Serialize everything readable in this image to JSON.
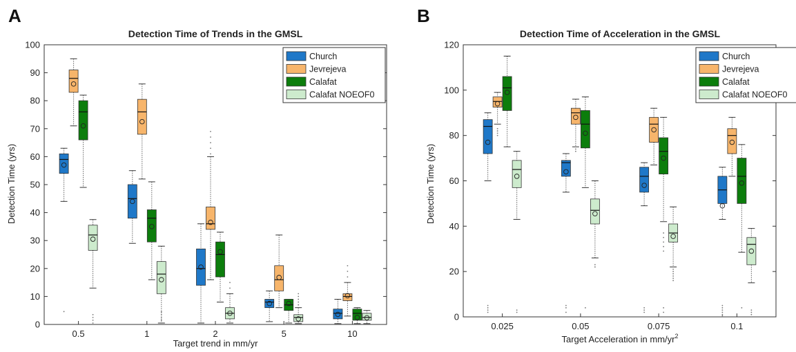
{
  "chart_data": [
    {
      "type": "box",
      "panel_label": "A",
      "title": "Detection Time of Trends in the GMSL",
      "xlabel": "Target trend in mm/yr",
      "ylabel": "Detection Time  (yrs)",
      "ylim": [
        0,
        100
      ],
      "yticks": [
        0,
        10,
        20,
        30,
        40,
        50,
        60,
        70,
        80,
        90,
        100
      ],
      "categories": [
        "0.5",
        "1",
        "2",
        "5",
        "10"
      ],
      "legend_position": "top-right",
      "series": [
        {
          "name": "Church",
          "color": "#1f78c8",
          "boxes": [
            {
              "whislo": 44,
              "q1": 54,
              "med": 59,
              "q3": 61,
              "whishi": 63,
              "mean": 57,
              "fliers": [
                4.6
              ]
            },
            {
              "whislo": 29,
              "q1": 38,
              "med": 45,
              "q3": 50,
              "whishi": 55,
              "mean": 44,
              "fliers": []
            },
            {
              "whislo": 0.5,
              "q1": 14,
              "med": 20,
              "q3": 27,
              "whishi": 36,
              "mean": 20.5,
              "fliers": []
            },
            {
              "whislo": 1,
              "q1": 6,
              "med": 8,
              "q3": 9,
              "whishi": 12,
              "mean": 7.5,
              "fliers": []
            },
            {
              "whislo": 0.3,
              "q1": 2,
              "med": 4,
              "q3": 5.5,
              "whishi": 9,
              "mean": 3.6,
              "fliers": []
            }
          ]
        },
        {
          "name": "Jevrejeva",
          "color": "#f7b56b",
          "boxes": [
            {
              "whislo": 71,
              "q1": 83,
              "med": 88,
              "q3": 91,
              "whishi": 95,
              "mean": 86,
              "fliers": []
            },
            {
              "whislo": 52,
              "q1": 68,
              "med": 76,
              "q3": 80.5,
              "whishi": 86,
              "mean": 72.5,
              "fliers": []
            },
            {
              "whislo": 16,
              "q1": 34,
              "med": 36,
              "q3": 42,
              "whishi": 60,
              "mean": 36.5,
              "fliers": [
                61,
                63,
                65,
                67,
                69
              ]
            },
            {
              "whislo": 6,
              "q1": 12,
              "med": 16,
              "q3": 21,
              "whishi": 32,
              "mean": 16.8,
              "fliers": []
            },
            {
              "whislo": 3,
              "q1": 8.5,
              "med": 10,
              "q3": 11,
              "whishi": 15,
              "mean": 10.3,
              "fliers": [
                17,
                19,
                21
              ]
            }
          ]
        },
        {
          "name": "Calafat",
          "color": "#0c7d0c",
          "boxes": [
            {
              "whislo": 49,
              "q1": 66,
              "med": 76,
              "q3": 80,
              "whishi": 82,
              "mean": 71,
              "fliers": []
            },
            {
              "whislo": 16,
              "q1": 29.5,
              "med": 38,
              "q3": 41,
              "whishi": 51,
              "mean": 35,
              "fliers": []
            },
            {
              "whislo": 8,
              "q1": 17,
              "med": 25,
              "q3": 29.5,
              "whishi": 33,
              "mean": 26,
              "fliers": []
            },
            {
              "whislo": 0.5,
              "q1": 5,
              "med": 7,
              "q3": 9,
              "whishi": 9,
              "mean": 7.5,
              "fliers": []
            },
            {
              "whislo": 0.3,
              "q1": 1.5,
              "med": 4,
              "q3": 5.5,
              "whishi": 6,
              "mean": 2.5,
              "fliers": []
            }
          ]
        },
        {
          "name": "Calafat NOEOF0",
          "color": "#cdebcd",
          "boxes": [
            {
              "whislo": 13,
              "q1": 26.5,
              "med": 32,
              "q3": 35.5,
              "whishi": 37.5,
              "mean": 30.5,
              "fliers": [
                0.5,
                1.5,
                2.5,
                3.5
              ]
            },
            {
              "whislo": 0.5,
              "q1": 11,
              "med": 18,
              "q3": 22.5,
              "whishi": 28,
              "mean": 16,
              "fliers": [
                1.5,
                2.5,
                3.5,
                4.5
              ]
            },
            {
              "whislo": 0.5,
              "q1": 2,
              "med": 4,
              "q3": 6,
              "whishi": 11,
              "mean": 4,
              "fliers": [
                13,
                15
              ]
            },
            {
              "whislo": 0.3,
              "q1": 1,
              "med": 2.5,
              "q3": 3.5,
              "whishi": 6,
              "mean": 2,
              "fliers": [
                7,
                8,
                9,
                10,
                11
              ]
            },
            {
              "whislo": 0.3,
              "q1": 1.5,
              "med": 2.5,
              "q3": 4,
              "whishi": 5,
              "mean": 2.4,
              "fliers": []
            }
          ]
        }
      ]
    },
    {
      "type": "box",
      "panel_label": "B",
      "title": "Detection Time of Acceleration in the GMSL",
      "xlabel": "Target Acceleration in mm/yr",
      "xlabel_superscript": "2",
      "ylabel": "Detection Time  (yrs)",
      "ylim": [
        0,
        120
      ],
      "yticks": [
        0,
        20,
        40,
        60,
        80,
        100,
        120
      ],
      "categories": [
        "0.025",
        "0.05",
        "0.075",
        "0.1"
      ],
      "legend_position": "top-right",
      "series": [
        {
          "name": "Church",
          "color": "#1f78c8",
          "boxes": [
            {
              "whislo": 60,
              "q1": 72,
              "med": 84,
              "q3": 87,
              "whishi": 90,
              "mean": 77,
              "fliers": [
                2,
                3,
                4,
                5
              ]
            },
            {
              "whislo": 55,
              "q1": 62,
              "med": 68,
              "q3": 69,
              "whishi": 72,
              "mean": 64,
              "fliers": [
                2,
                4,
                5
              ]
            },
            {
              "whislo": 49,
              "q1": 55,
              "med": 62,
              "q3": 66,
              "whishi": 68,
              "mean": 58,
              "fliers": [
                2,
                3,
                4
              ]
            },
            {
              "whislo": 43,
              "q1": 50,
              "med": 56,
              "q3": 62,
              "whishi": 66,
              "mean": 49,
              "fliers": [
                0.5,
                1,
                2,
                3,
                4,
                5
              ]
            }
          ]
        },
        {
          "name": "Jevrejeva",
          "color": "#f7b56b",
          "boxes": [
            {
              "whislo": 85,
              "q1": 92.5,
              "med": 95,
              "q3": 97,
              "whishi": 99,
              "mean": 94,
              "fliers": [
                80,
                81,
                82,
                83
              ]
            },
            {
              "whislo": 75,
              "q1": 85,
              "med": 90,
              "q3": 92,
              "whishi": 96,
              "mean": 88,
              "fliers": [
                73,
                74
              ]
            },
            {
              "whislo": 67,
              "q1": 77,
              "med": 85,
              "q3": 88,
              "whishi": 92,
              "mean": 82.5,
              "fliers": []
            },
            {
              "whislo": 62,
              "q1": 72,
              "med": 80,
              "q3": 83,
              "whishi": 88,
              "mean": 77,
              "fliers": []
            }
          ]
        },
        {
          "name": "Calafat",
          "color": "#0c7d0c",
          "boxes": [
            {
              "whislo": 75,
              "q1": 91,
              "med": 101,
              "q3": 106,
              "whishi": 115,
              "mean": 99,
              "fliers": []
            },
            {
              "whislo": 57,
              "q1": 74.5,
              "med": 85,
              "q3": 91,
              "whishi": 97,
              "mean": 81,
              "fliers": [
                4
              ]
            },
            {
              "whislo": 42,
              "q1": 63,
              "med": 73,
              "q3": 79,
              "whishi": 88,
              "mean": 70,
              "fliers": [
                2,
                4,
                29,
                31,
                33,
                35,
                37
              ]
            },
            {
              "whislo": 28.5,
              "q1": 50,
              "med": 62,
              "q3": 70,
              "whishi": 76,
              "mean": 59,
              "fliers": [
                4
              ]
            }
          ]
        },
        {
          "name": "Calafat NOEOF0",
          "color": "#cdebcd",
          "boxes": [
            {
              "whislo": 43,
              "q1": 57,
              "med": 65,
              "q3": 69,
              "whishi": 73,
              "mean": 62,
              "fliers": [
                2,
                3
              ]
            },
            {
              "whislo": 26,
              "q1": 41,
              "med": 47,
              "q3": 52,
              "whishi": 60,
              "mean": 45.5,
              "fliers": [
                22,
                23
              ]
            },
            {
              "whislo": 22,
              "q1": 33,
              "med": 37,
              "q3": 41,
              "whishi": 48.5,
              "mean": 35.5,
              "fliers": [
                16,
                17,
                18,
                19,
                20,
                21
              ]
            },
            {
              "whislo": 15,
              "q1": 23,
              "med": 32,
              "q3": 35,
              "whishi": 39,
              "mean": 29,
              "fliers": [
                1,
                2,
                3
              ]
            }
          ]
        }
      ]
    }
  ]
}
